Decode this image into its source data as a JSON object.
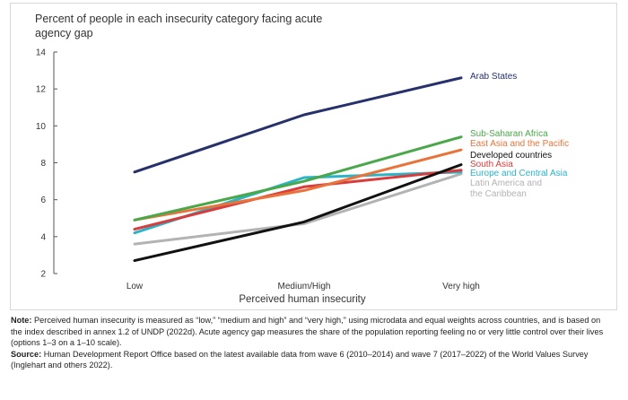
{
  "chart_data": {
    "type": "line",
    "title": "Percent of people in each insecurity category facing acute agency gap",
    "xlabel": "Perceived human insecurity",
    "ylabel": "",
    "categories": [
      "Low",
      "Medium/High",
      "Very high"
    ],
    "ylim": [
      2,
      14
    ],
    "yticks": [
      2,
      4,
      6,
      8,
      10,
      12,
      14
    ],
    "grid": false,
    "legend": "direct labels at line ends (right)",
    "series": [
      {
        "name": "Arab States",
        "values": [
          7.5,
          10.6,
          12.6
        ],
        "color": "#26306b"
      },
      {
        "name": "Sub-Saharan Africa",
        "values": [
          4.9,
          7.0,
          9.4
        ],
        "color": "#4aa84a"
      },
      {
        "name": "East Asia and the Pacific",
        "values": [
          4.9,
          6.5,
          8.7
        ],
        "color": "#e8743b"
      },
      {
        "name": "Developed countries",
        "values": [
          2.7,
          4.8,
          7.9
        ],
        "color": "#111111"
      },
      {
        "name": "South Asia",
        "values": [
          4.4,
          6.7,
          7.6
        ],
        "color": "#d93c3c"
      },
      {
        "name": "Europe and Central Asia",
        "values": [
          4.2,
          7.2,
          7.5
        ],
        "color": "#2bb3c8"
      },
      {
        "name": "Latin America and the Caribbean",
        "label_lines": [
          "Latin America and",
          "the Caribbean"
        ],
        "values": [
          3.6,
          4.7,
          7.4
        ],
        "color": "#b3b3b3"
      }
    ]
  },
  "notes": {
    "note_label": "Note:",
    "note_text": " Perceived human insecurity is measured as “low,” “medium and high” and “very high,” using microdata and equal weights across countries, and is based on the index described in annex 1.2 of UNDP (2022d). Acute agency gap measures the share of the population reporting feeling no or very little control over their lives (options 1–3 on a 1–10 scale).",
    "source_label": "Source:",
    "source_text": " Human Development Report Office based on the latest available data from wave 6 (2010–2014) and wave 7 (2017–2022) of the World Values Survey (Inglehart and others 2022)."
  }
}
